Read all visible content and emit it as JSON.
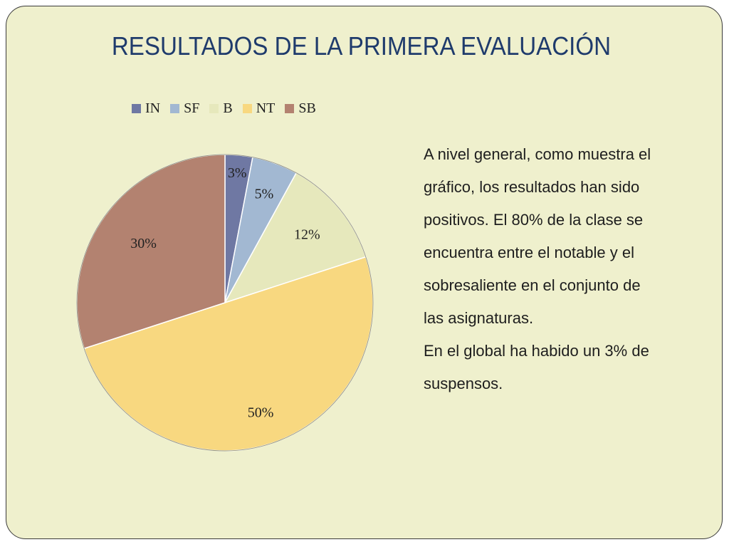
{
  "slide": {
    "title": "RESULTADOS DE LA PRIMERA EVALUACIÓN",
    "background_color": "#eff0cd",
    "title_color": "#1f3b6c"
  },
  "chart_data": {
    "type": "pie",
    "title": "",
    "categories": [
      "IN",
      "SF",
      "B",
      "NT",
      "SB"
    ],
    "values": [
      3,
      5,
      12,
      50,
      30
    ],
    "labels": [
      "3%",
      "5%",
      "12%",
      "50%",
      "30%"
    ],
    "colors": [
      "#6f78a3",
      "#a2b8d2",
      "#e6e8bc",
      "#f8d880",
      "#b38270"
    ],
    "legend_position": "top"
  },
  "text_block": {
    "line1": "A nivel general, como muestra el",
    "line2": "gráfico, los resultados han sido",
    "line3": "positivos. El 80% de la clase se",
    "line4": "encuentra entre el notable y el",
    "line5": "sobresaliente en el conjunto de",
    "line6": "las asignaturas.",
    "line7": "En el global ha habido un 3% de",
    "line8": "suspensos."
  }
}
